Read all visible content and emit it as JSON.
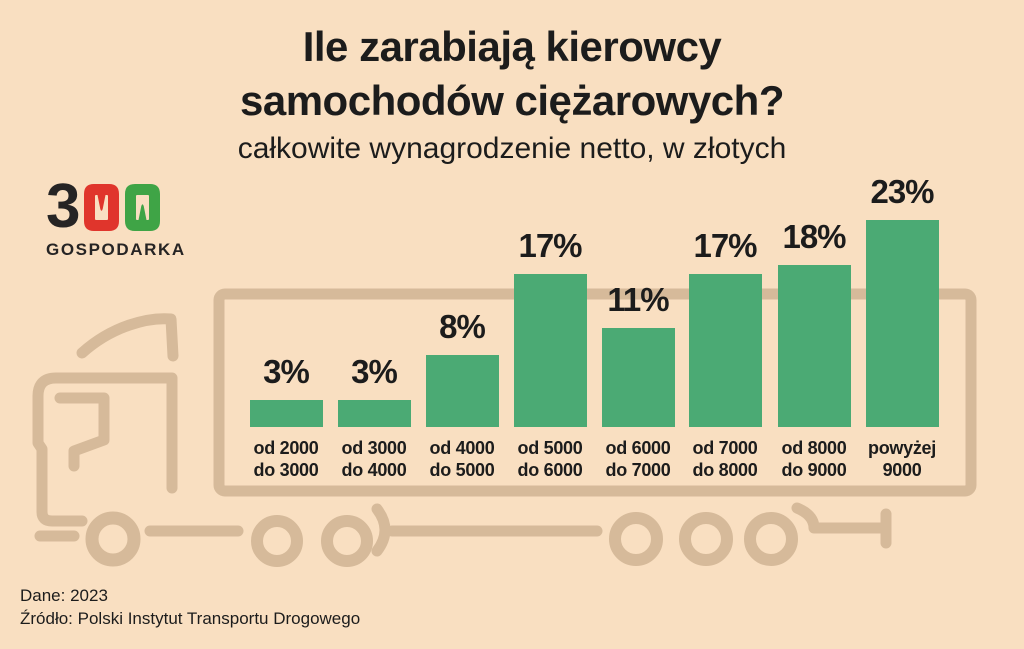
{
  "title": {
    "line1": "Ile zarabiają kierowcy",
    "line2": "samochodów ciężarowych?",
    "subtitle": "całkowite wynagrodzenie netto, w złotych"
  },
  "logo": {
    "digit": "3",
    "brand": "GOSPODARKA"
  },
  "chart_data": {
    "type": "bar",
    "title": "Ile zarabiają kierowcy samochodów ciężarowych?",
    "subtitle": "całkowite wynagrodzenie netto, w złotych",
    "unit": "%",
    "ylim": [
      0,
      25
    ],
    "grid": false,
    "legend": "none",
    "categories": [
      {
        "line1": "od 2000",
        "line2": "do 3000"
      },
      {
        "line1": "od 3000",
        "line2": "do 4000"
      },
      {
        "line1": "od 4000",
        "line2": "do 5000"
      },
      {
        "line1": "od 5000",
        "line2": "do 6000"
      },
      {
        "line1": "od 6000",
        "line2": "do 7000"
      },
      {
        "line1": "od 7000",
        "line2": "do 8000"
      },
      {
        "line1": "od 8000",
        "line2": "do 9000"
      },
      {
        "line1": "powyżej",
        "line2": "9000"
      }
    ],
    "values": [
      3,
      3,
      8,
      17,
      11,
      17,
      18,
      23
    ],
    "labels": [
      "3%",
      "3%",
      "8%",
      "17%",
      "11%",
      "17%",
      "18%",
      "23%"
    ],
    "bar_color": "#4BAA74"
  },
  "footer": {
    "line1": "Dane: 2023",
    "line2": "Źródło: Polski Instytut Transportu Drogowego"
  },
  "colors": {
    "background": "#F9DFC1",
    "truck_outline": "#D6BA9A",
    "bar": "#4BAA74",
    "text": "#1C1C1C",
    "logo_black": "#262424",
    "logo_red": "#E0352C",
    "logo_green": "#3FA446"
  }
}
